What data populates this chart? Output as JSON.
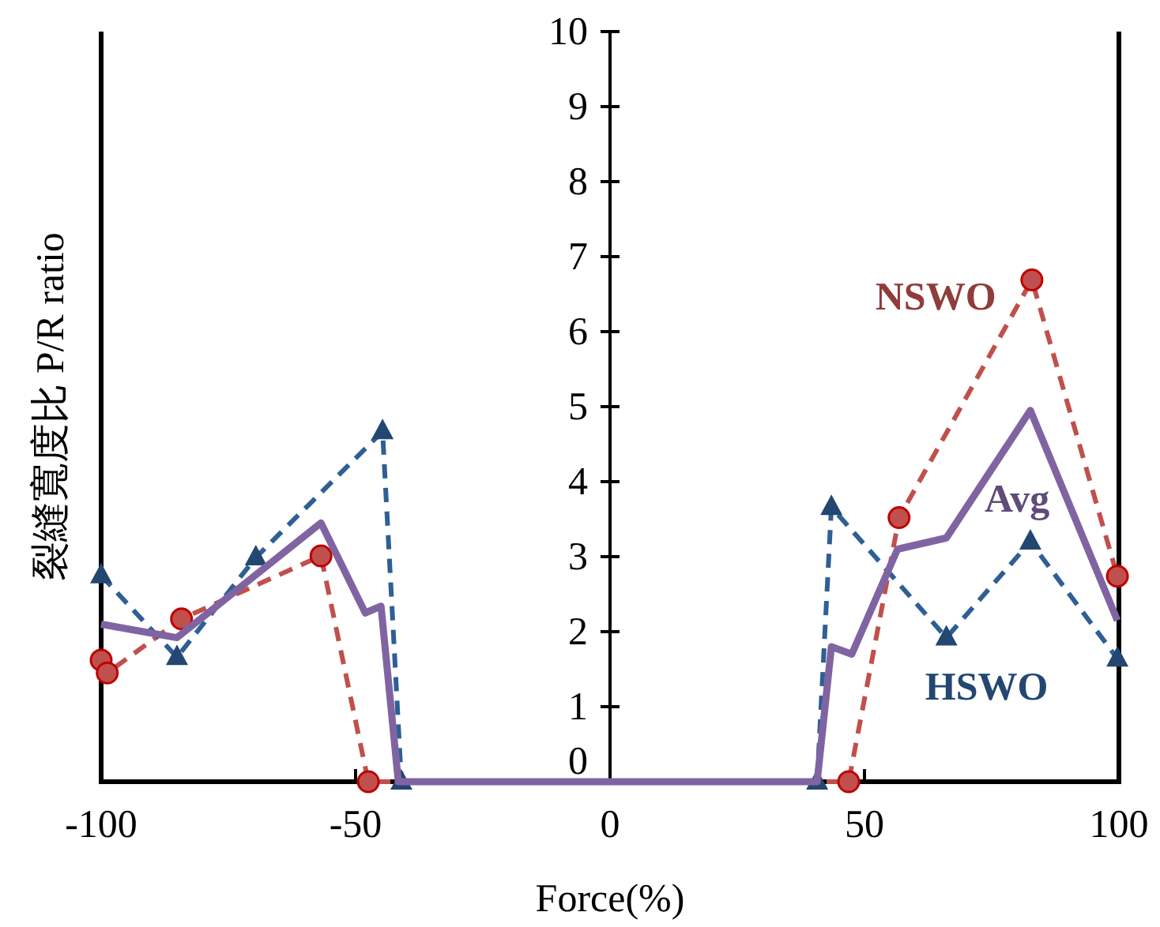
{
  "chart_data": {
    "type": "line",
    "xlabel": "Force(%)",
    "ylabel": "裂縫寬度比  P/R ratio",
    "xlim": [
      -100,
      100
    ],
    "xticks": [
      -100,
      -50,
      0,
      50,
      100
    ],
    "ylim": [
      0,
      10
    ],
    "yticks": [
      0,
      1,
      2,
      3,
      4,
      5,
      6,
      7,
      8,
      9,
      10
    ],
    "grid": false,
    "legend": false,
    "series": [
      {
        "name": "NSWO",
        "color": "#c0504d",
        "marker": "circle",
        "line_style": "dashed",
        "x": [
          -100,
          -98.8,
          -84.2,
          -56.8,
          -47.5,
          46.9,
          56.8,
          82.9,
          99.7
        ],
        "values": [
          1.62,
          1.45,
          2.17,
          3.01,
          0,
          0,
          3.52,
          6.69,
          2.74
        ]
      },
      {
        "name": "HSWO",
        "color": "#2e5f95",
        "marker": "triangle",
        "line_style": "dashed",
        "x": [
          -100,
          -85.1,
          -69.6,
          -44.7,
          -41,
          40.7,
          43.5,
          66.1,
          82.6,
          99.7
        ],
        "values": [
          2.75,
          1.66,
          2.99,
          4.67,
          0,
          0,
          3.66,
          1.92,
          3.2,
          1.64
        ]
      },
      {
        "name": "Avg",
        "color": "#8064a2",
        "marker": "none",
        "line_style": "solid",
        "x": [
          -100,
          -85.1,
          -56.8,
          -48.1,
          -45,
          -41.6,
          40.7,
          43.5,
          47.5,
          56.5,
          66.1,
          82.6,
          99.7
        ],
        "values": [
          2.1,
          1.92,
          3.45,
          2.25,
          2.34,
          0,
          0,
          1.8,
          1.7,
          3.1,
          3.25,
          4.95,
          2.15
        ]
      }
    ]
  }
}
